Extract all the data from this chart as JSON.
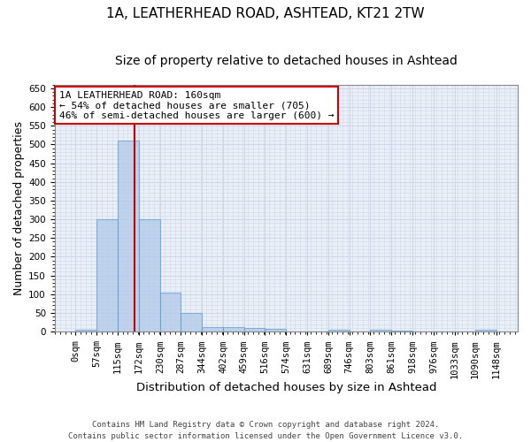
{
  "title": "1A, LEATHERHEAD ROAD, ASHTEAD, KT21 2TW",
  "subtitle": "Size of property relative to detached houses in Ashtead",
  "xlabel": "Distribution of detached houses by size in Ashtead",
  "ylabel": "Number of detached properties",
  "bin_edges": [
    0,
    57,
    115,
    172,
    230,
    287,
    344,
    402,
    459,
    516,
    574,
    631,
    689,
    746,
    803,
    861,
    918,
    976,
    1033,
    1090,
    1148
  ],
  "bar_heights": [
    5,
    300,
    510,
    300,
    105,
    50,
    12,
    12,
    10,
    7,
    0,
    0,
    5,
    0,
    5,
    3,
    0,
    0,
    0,
    5
  ],
  "bar_color": "#aec6e8",
  "bar_edgecolor": "#5a9fd4",
  "bar_alpha": 0.7,
  "vline_x": 160,
  "vline_color": "#cc0000",
  "annotation_line1": "1A LEATHERHEAD ROAD: 160sqm",
  "annotation_line2": "← 54% of detached houses are smaller (705)",
  "annotation_line3": "46% of semi-detached houses are larger (600) →",
  "annotation_box_color": "#ffffff",
  "annotation_box_edgecolor": "#cc0000",
  "ylim": [
    0,
    660
  ],
  "yticks": [
    0,
    50,
    100,
    150,
    200,
    250,
    300,
    350,
    400,
    450,
    500,
    550,
    600,
    650
  ],
  "grid_color": "#d0d8e8",
  "background_color": "#eaf0f8",
  "footer_line1": "Contains HM Land Registry data © Crown copyright and database right 2024.",
  "footer_line2": "Contains public sector information licensed under the Open Government Licence v3.0.",
  "title_fontsize": 11,
  "subtitle_fontsize": 10,
  "xlabel_fontsize": 9.5,
  "ylabel_fontsize": 9,
  "tick_fontsize": 7.5,
  "annotation_fontsize": 8,
  "footer_fontsize": 6.5
}
